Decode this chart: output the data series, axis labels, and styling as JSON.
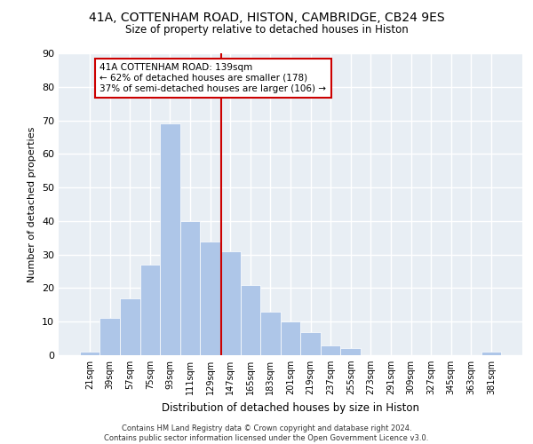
{
  "title1": "41A, COTTENHAM ROAD, HISTON, CAMBRIDGE, CB24 9ES",
  "title2": "Size of property relative to detached houses in Histon",
  "xlabel": "Distribution of detached houses by size in Histon",
  "ylabel": "Number of detached properties",
  "categories": [
    "21sqm",
    "39sqm",
    "57sqm",
    "75sqm",
    "93sqm",
    "111sqm",
    "129sqm",
    "147sqm",
    "165sqm",
    "183sqm",
    "201sqm",
    "219sqm",
    "237sqm",
    "255sqm",
    "273sqm",
    "291sqm",
    "309sqm",
    "327sqm",
    "345sqm",
    "363sqm",
    "381sqm"
  ],
  "values": [
    1,
    11,
    17,
    27,
    69,
    40,
    34,
    31,
    21,
    13,
    10,
    7,
    3,
    2,
    0,
    0,
    0,
    0,
    0,
    0,
    1
  ],
  "bar_color": "#aec6e8",
  "vline_color": "#cc0000",
  "annotation_text": "41A COTTENHAM ROAD: 139sqm\n← 62% of detached houses are smaller (178)\n37% of semi-detached houses are larger (106) →",
  "annotation_box_color": "#cc0000",
  "bg_color": "#e8eef4",
  "grid_color": "#ffffff",
  "ylim": [
    0,
    90
  ],
  "yticks": [
    0,
    10,
    20,
    30,
    40,
    50,
    60,
    70,
    80,
    90
  ],
  "footer": "Contains HM Land Registry data © Crown copyright and database right 2024.\nContains public sector information licensed under the Open Government Licence v3.0."
}
